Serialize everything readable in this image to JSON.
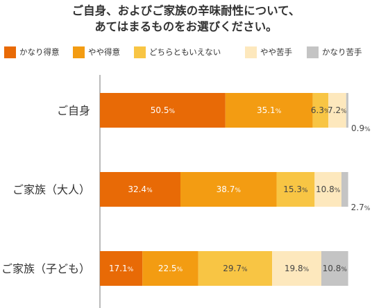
{
  "title_lines": [
    "ご自身、およびご家族の辛味耐性について、",
    "あてはまるものをお選びください。"
  ],
  "chart_data": {
    "type": "bar",
    "orientation": "horizontal",
    "stacked": true,
    "unit": "%",
    "categories": [
      "ご自身",
      "ご家族（大人）",
      "ご家族（子ども）"
    ],
    "series": [
      {
        "name": "かなり得意",
        "color": "#e86a06",
        "values": [
          50.5,
          32.4,
          17.1
        ]
      },
      {
        "name": "やや得意",
        "color": "#f39c12",
        "values": [
          35.1,
          38.7,
          22.5
        ]
      },
      {
        "name": "どちらともいえない",
        "color": "#f8c544",
        "values": [
          6.3,
          15.3,
          29.7
        ]
      },
      {
        "name": "やや苦手",
        "color": "#fde8bd",
        "values": [
          7.2,
          10.8,
          19.8
        ]
      },
      {
        "name": "かなり苦手",
        "color": "#c4c4c4",
        "values": [
          0.9,
          2.7,
          10.8
        ]
      }
    ],
    "xlim": [
      0,
      100
    ],
    "legend_position": "top",
    "grid": false
  }
}
